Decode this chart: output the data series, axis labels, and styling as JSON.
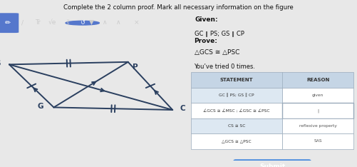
{
  "title": "Complete the 2 column proof. Mark all necessary information on the figure",
  "given_label": "Given:",
  "given_text": "GC ∥ PS; GS ∥ CP",
  "prove_label": "Prove:",
  "prove_text": "△GCS ≅ △PSC",
  "tried_text": "You’ve tried 0 times.",
  "bg_color": "#e8e8e8",
  "panel_bg": "#ffffff",
  "geo_bg": "#f0f0f0",
  "toolbar_bg": "#555555",
  "toolbar_active_bg": "#5577cc",
  "table_header_bg": "#c5d5e5",
  "table_row1_bg": "#dde8f2",
  "table_row2_bg": "#ffffff",
  "table_border": "#99aabb",
  "submit_bg": "#4488dd",
  "shape_color": "#2a3f5f",
  "statements": [
    "GC ∥ PS; GS ∥ CP",
    "∠GCS ≅ ∠MSC ; ∠GSC ≅ ∠PSC",
    "CS ≅ SC",
    "△GCS ≅ △PSC"
  ],
  "reasons": [
    "given",
    "|",
    "reflexive property",
    "SAS"
  ],
  "G": [
    0.28,
    0.42
  ],
  "C": [
    0.92,
    0.4
  ],
  "S": [
    0.04,
    0.76
  ],
  "P": [
    0.68,
    0.78
  ]
}
